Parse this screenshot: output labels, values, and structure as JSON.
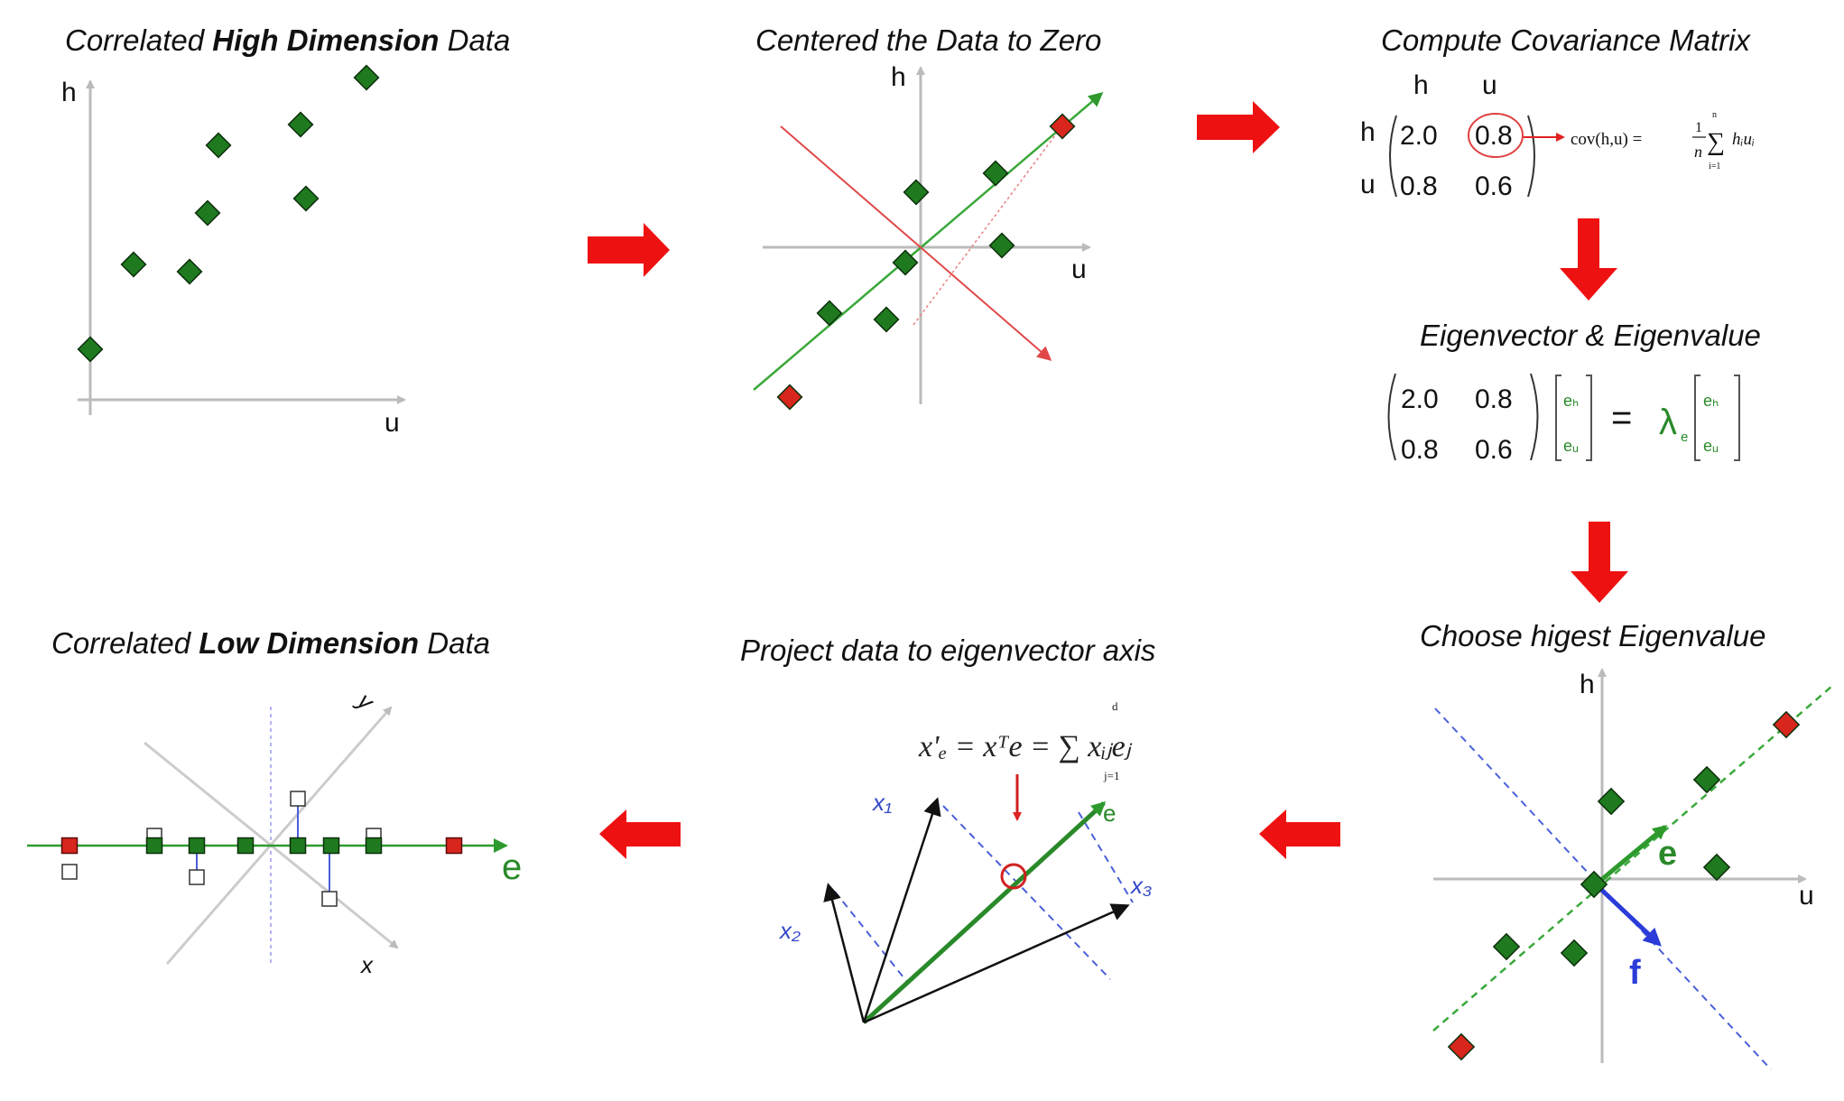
{
  "colors": {
    "point_green": "#1f7a1f",
    "point_red": "#d8261c",
    "arrow_red": "#ee1111",
    "line_green": "#3aa83a",
    "line_red": "#e06060",
    "dashed_blue": "#4a5fd8",
    "axis_gray": "#bbbbbb"
  },
  "panels": {
    "p1": {
      "title_pre": "Correlated ",
      "title_bold": "High Dimension",
      "title_post": " Data",
      "axis_h": "h",
      "axis_u": "u"
    },
    "p2": {
      "title": "Centered the Data to Zero",
      "axis_h": "h",
      "axis_u": "u"
    },
    "p3": {
      "title": "Compute Covariance Matrix",
      "col_h": "h",
      "col_u": "u",
      "row_h": "h",
      "row_u": "u",
      "m11": "2.0",
      "m12": "0.8",
      "m21": "0.8",
      "m22": "0.6",
      "formula_lhs": "cov(h,u) =",
      "formula_frac_num": "1",
      "formula_frac_den": "n",
      "formula_sum": "∑",
      "formula_sum_top": "n",
      "formula_sum_bottom": "i=1",
      "formula_term": "hᵢuᵢ"
    },
    "p4": {
      "title": "Eigenvector & Eigenvalue",
      "m11": "2.0",
      "m12": "0.8",
      "m21": "0.8",
      "m22": "0.6",
      "v1_top": "eₕ",
      "v1_bot": "eᵤ",
      "equals": "=",
      "lambda": "λ",
      "lambda_sub": "e",
      "v2_top": "eₕ",
      "v2_bot": "eᵤ"
    },
    "p5": {
      "title": "Choose higest Eigenvalue",
      "axis_h": "h",
      "axis_u": "u",
      "vec_e": "e",
      "vec_f": "f"
    },
    "p6": {
      "title": "Project data to eigenvector axis",
      "formula": "x'ₑ = xᵀe = ∑ xᵢⱼeⱼ",
      "sum_top": "d",
      "sum_bottom": "j=1",
      "vec_e": "e",
      "x1": "x₁",
      "x2": "x₂",
      "x3": "x₃"
    },
    "p7": {
      "title_pre": "Correlated ",
      "title_bold": "Low Dimension",
      "title_post": " Data",
      "axis_y": "y",
      "axis_x": "x",
      "vec_e": "e"
    }
  }
}
